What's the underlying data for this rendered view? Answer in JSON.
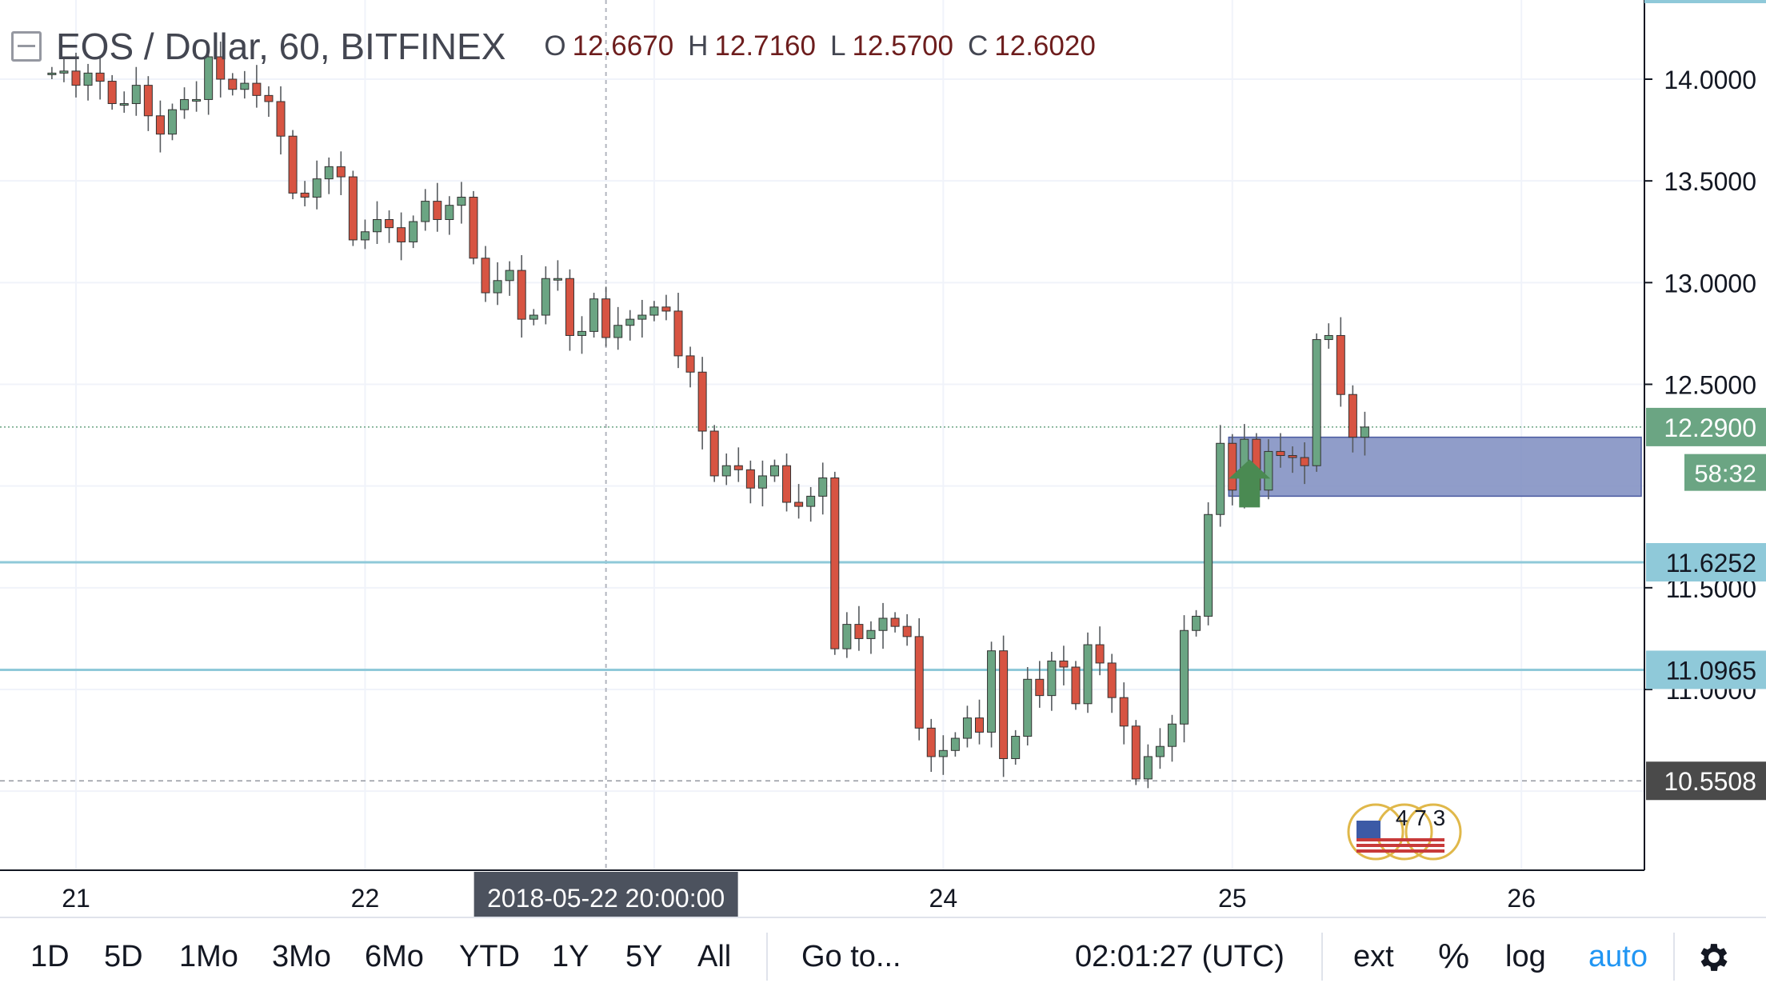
{
  "legend": {
    "title": "EOS / Dollar, 60, BITFINEX",
    "open_label": "O",
    "open": "12.6670",
    "high_label": "H",
    "high": "12.7160",
    "low_label": "L",
    "low": "12.5700",
    "close_label": "C",
    "close": "12.6020"
  },
  "chart_data": {
    "type": "candlestick",
    "title": "EOS / Dollar, 60, BITFINEX",
    "exchange": "BITFINEX",
    "interval": "60",
    "y_range": [
      10.2,
      14.35
    ],
    "x_day_ticks": [
      {
        "label": "21",
        "hour": 0
      },
      {
        "label": "22",
        "hour": 24
      },
      {
        "label": "24",
        "hour": 72
      },
      {
        "label": "25",
        "hour": 96
      },
      {
        "label": "26",
        "hour": 120
      }
    ],
    "y_ticks": [
      "14.0000",
      "13.5000",
      "13.0000",
      "12.5000",
      "11.5000",
      "11.0000"
    ],
    "y_tick_values": [
      14.0,
      13.5,
      13.0,
      12.5,
      11.5,
      11.0
    ],
    "price_label": {
      "value": "12.2900",
      "countdown": "58:32",
      "color": "#6ba583"
    },
    "horizontal_lines": [
      {
        "label": "11.6252",
        "value": 11.6252,
        "color": "#8fc9d9"
      },
      {
        "label": "11.0965",
        "value": 11.0965,
        "color": "#8fc9d9"
      }
    ],
    "low_marker": {
      "label": "10.5508",
      "value": 10.5508
    },
    "crosshair": {
      "label": "2018-05-22 20:00:00",
      "hour": 44
    },
    "zone": {
      "hour_start": 96.5,
      "low": 11.95,
      "high": 12.24,
      "color": "#7c8cc0"
    },
    "arrow": {
      "hour": 96.5,
      "direction": "up",
      "color": "#4a8a52"
    },
    "up_color": "#6ba583",
    "down_color": "#d75442",
    "candles": {
      "first_hour": -2,
      "first_open": 14.03,
      "closes": [
        14.03,
        14.04,
        13.97,
        14.03,
        13.99,
        13.88,
        13.88,
        13.97,
        13.82,
        13.73,
        13.85,
        13.9,
        13.9,
        14.11,
        14.0,
        13.95,
        13.98,
        13.92,
        13.89,
        13.72,
        13.44,
        13.42,
        13.51,
        13.57,
        13.52,
        13.21,
        13.25,
        13.31,
        13.27,
        13.2,
        13.3,
        13.4,
        13.31,
        13.38,
        13.42,
        13.12,
        12.95,
        13.01,
        13.06,
        12.82,
        12.84,
        13.02,
        13.02,
        12.74,
        12.76,
        12.92,
        12.73,
        12.79,
        12.82,
        12.84,
        12.88,
        12.86,
        12.64,
        12.56,
        12.27,
        12.05,
        12.1,
        12.08,
        11.99,
        12.05,
        12.1,
        11.92,
        11.9,
        11.95,
        12.04,
        11.2,
        11.32,
        11.25,
        11.29,
        11.35,
        11.31,
        11.26,
        10.81,
        10.67,
        10.7,
        10.76,
        10.86,
        10.79,
        11.19,
        10.66,
        10.77,
        11.05,
        10.97,
        11.14,
        11.11,
        10.93,
        11.22,
        11.13,
        10.96,
        10.82,
        10.56,
        10.67,
        10.72,
        10.83,
        11.29,
        11.36,
        11.86,
        12.21,
        11.98,
        12.23,
        11.98,
        12.17,
        12.15,
        12.14,
        12.1,
        12.72,
        12.74,
        12.45,
        12.24,
        12.29
      ]
    }
  },
  "toolbar": {
    "range_1d": "1D",
    "range_5d": "5D",
    "range_1mo": "1Mo",
    "range_3mo": "3Mo",
    "range_6mo": "6Mo",
    "range_ytd": "YTD",
    "range_1y": "1Y",
    "range_5y": "5Y",
    "range_all": "All",
    "goto": "Go to...",
    "clock": "02:01:27 (UTC)",
    "ext": "ext",
    "percent": "%",
    "log": "log",
    "auto": "auto",
    "settings_icon": "gear-icon"
  },
  "watermark": {
    "digits": "4 7 3"
  }
}
